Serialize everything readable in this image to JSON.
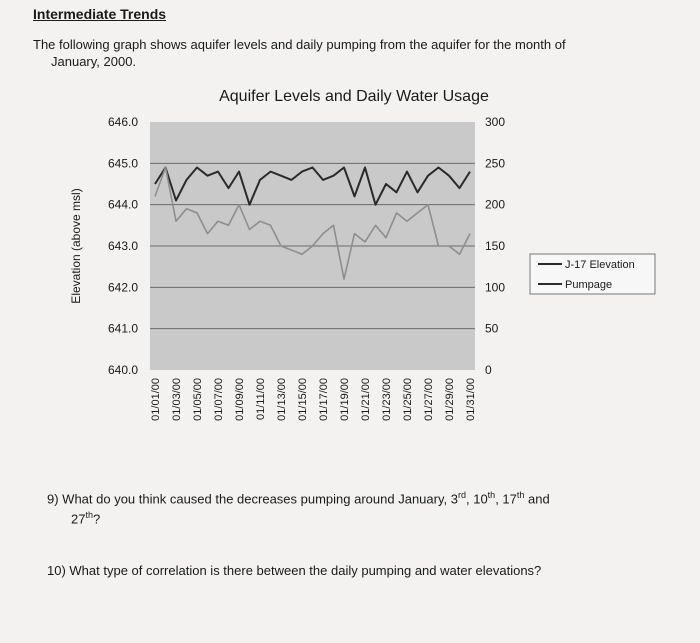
{
  "page": {
    "heading": "Intermediate Trends",
    "intro_line1": "The following graph shows aquifer levels and daily pumping from the aquifer for the month of",
    "intro_line2": "January, 2000."
  },
  "questions": {
    "q9_prefix": "9)  What do you think caused the decreases pumping around January, 3",
    "q9_sup1": "rd",
    "q9_mid1": ", 10",
    "q9_sup2": "th",
    "q9_mid2": ", 17",
    "q9_sup3": "th",
    "q9_mid3": " and",
    "q9_line2_pre": "27",
    "q9_sup4": "th",
    "q9_line2_post": "?",
    "q10": "10)  What type of correlation is there between the daily pumping and water elevations?"
  },
  "colors": {
    "plot_bg": "#c9c9c9",
    "gridline": "#6a6a6a",
    "elevation_line": "#2a2a2a",
    "pumpage_line": "#8e8e8e"
  },
  "chart_data": {
    "type": "line",
    "title": "Aquifer Levels and Daily Water Usage",
    "ylabel": "Elevation (above msl)",
    "y2label": "",
    "ylim": [
      640.0,
      646.0
    ],
    "y2lim": [
      0,
      300
    ],
    "y_ticks": [
      "646.0",
      "645.0",
      "644.0",
      "643.0",
      "642.0",
      "641.0",
      "640.0"
    ],
    "y2_ticks": [
      "300",
      "250",
      "200",
      "150",
      "100",
      "50",
      "0"
    ],
    "x_ticks": [
      "01/01/00",
      "01/03/00",
      "01/05/00",
      "01/07/00",
      "01/09/00",
      "01/11/00",
      "01/13/00",
      "01/15/00",
      "01/17/00",
      "01/19/00",
      "01/21/00",
      "01/23/00",
      "01/25/00",
      "01/27/00",
      "01/29/00",
      "01/31/00"
    ],
    "x": [
      "01/01/00",
      "01/02/00",
      "01/03/00",
      "01/04/00",
      "01/05/00",
      "01/06/00",
      "01/07/00",
      "01/08/00",
      "01/09/00",
      "01/10/00",
      "01/11/00",
      "01/12/00",
      "01/13/00",
      "01/14/00",
      "01/15/00",
      "01/16/00",
      "01/17/00",
      "01/18/00",
      "01/19/00",
      "01/20/00",
      "01/21/00",
      "01/22/00",
      "01/23/00",
      "01/24/00",
      "01/25/00",
      "01/26/00",
      "01/27/00",
      "01/28/00",
      "01/29/00",
      "01/30/00",
      "01/31/00"
    ],
    "series": [
      {
        "name": "J-17 Elevation",
        "axis": "left",
        "values": [
          644.5,
          644.9,
          644.1,
          644.6,
          644.9,
          644.7,
          644.8,
          644.4,
          644.8,
          644.0,
          644.6,
          644.8,
          644.7,
          644.6,
          644.8,
          644.9,
          644.6,
          644.7,
          644.9,
          644.2,
          644.9,
          644.0,
          644.5,
          644.3,
          644.8,
          644.3,
          644.7,
          644.9,
          644.7,
          644.4,
          644.8
        ]
      },
      {
        "name": "Pumpage",
        "axis": "right",
        "values": [
          210,
          245,
          180,
          195,
          190,
          165,
          180,
          175,
          200,
          170,
          180,
          175,
          150,
          145,
          140,
          150,
          165,
          175,
          110,
          165,
          155,
          175,
          160,
          190,
          180,
          190,
          200,
          150,
          150,
          140,
          165
        ]
      }
    ],
    "grid": true,
    "legend": "right"
  }
}
